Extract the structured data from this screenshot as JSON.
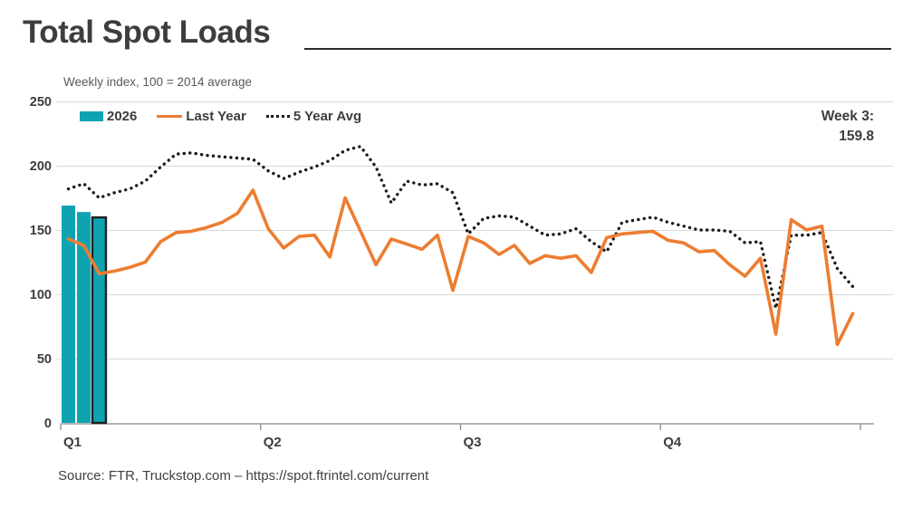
{
  "title": "Total Spot Loads",
  "subtitle": "Weekly index, 100 = 2014 average",
  "legend": [
    {
      "label": "2026",
      "swatch": "bar-swatch",
      "color": "#0FA3B2"
    },
    {
      "label": "Last Year",
      "swatch": "line-swatch",
      "color": "#ED7D31"
    },
    {
      "label": "5 Year Avg",
      "swatch": "dotted-swatch",
      "color": "#1A1A1A"
    }
  ],
  "annotation": {
    "line1": "Week 3:",
    "line2": "159.8"
  },
  "source": "Source: FTR, Truckstop.com – https://spot.ftrintel.com/current",
  "chart_data": {
    "type": "bar+line",
    "x_unit": "weeks",
    "weeks": 52,
    "categories_x": [
      "Q1",
      "Q2",
      "Q3",
      "Q4"
    ],
    "y_ticks": [
      0,
      50,
      100,
      150,
      200,
      250
    ],
    "ylim": [
      0,
      250
    ],
    "grid": true,
    "legend_position": "top-left",
    "colors": {
      "bar": "#0FA3B2",
      "bar_highlight_outline": "#1f1f1f",
      "last_year": "#ED7D31",
      "five_year_avg": "#1a1a1a",
      "gridline": "#d9d9d9",
      "axis": "#8c8c8c",
      "label_text": "#3d3d3d"
    },
    "series": [
      {
        "name": "2026",
        "type": "bar",
        "values": [
          169,
          164,
          159.8
        ],
        "highlight_last": true,
        "note": "current week = Week 3: 159.8"
      },
      {
        "name": "Last Year",
        "type": "line",
        "values": [
          143,
          138,
          116,
          118,
          121,
          125,
          141,
          148,
          149,
          152,
          156,
          163,
          181,
          151,
          136,
          145,
          146,
          129,
          175,
          149,
          123,
          143,
          139,
          135,
          146,
          103,
          145,
          140,
          131,
          138,
          124,
          130,
          128,
          130,
          117,
          144,
          147,
          148,
          149,
          142,
          140,
          133,
          134,
          123,
          114,
          128,
          69,
          158,
          150,
          153,
          61,
          85
        ]
      },
      {
        "name": "5 Year Avg",
        "type": "dotted-line",
        "values": [
          182,
          186,
          175,
          179,
          182,
          188,
          199,
          209,
          210,
          208,
          207,
          206,
          205,
          196,
          190,
          195,
          199,
          204,
          212,
          215,
          199,
          171,
          188,
          185,
          186,
          179,
          147,
          159,
          161,
          160,
          153,
          146,
          147,
          151,
          141,
          133,
          156,
          158,
          160,
          156,
          153,
          150,
          150,
          149,
          140,
          141,
          89,
          146,
          146,
          148,
          120,
          106
        ]
      }
    ]
  }
}
